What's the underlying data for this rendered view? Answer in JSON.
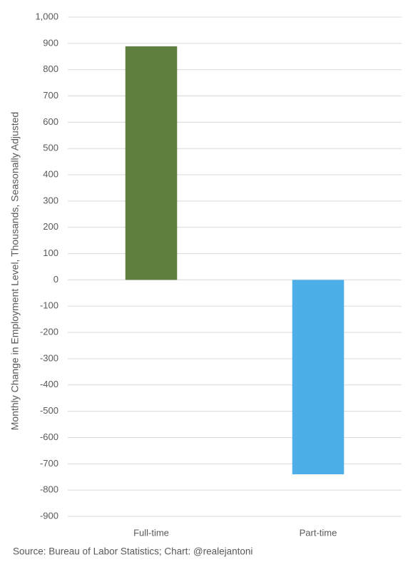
{
  "chart_data": {
    "type": "bar",
    "categories": [
      "Full-time",
      "Part-time"
    ],
    "values": [
      889,
      -740
    ],
    "colors": [
      "#5e7f3d",
      "#4daee8"
    ],
    "ylabel": "Monthly Change in Employment Level, Thousands, Seasonally Adjusted",
    "source": "Source: Bureau of Labor Statistics; Chart: @realejantoni",
    "ylim": [
      -900,
      1000
    ],
    "yticks": [
      -900,
      -800,
      -700,
      -600,
      -500,
      -400,
      -300,
      -200,
      -100,
      0,
      100,
      200,
      300,
      400,
      500,
      600,
      700,
      800,
      900,
      {
        "value": 1000,
        "label": "1,000"
      }
    ],
    "grid": true
  }
}
